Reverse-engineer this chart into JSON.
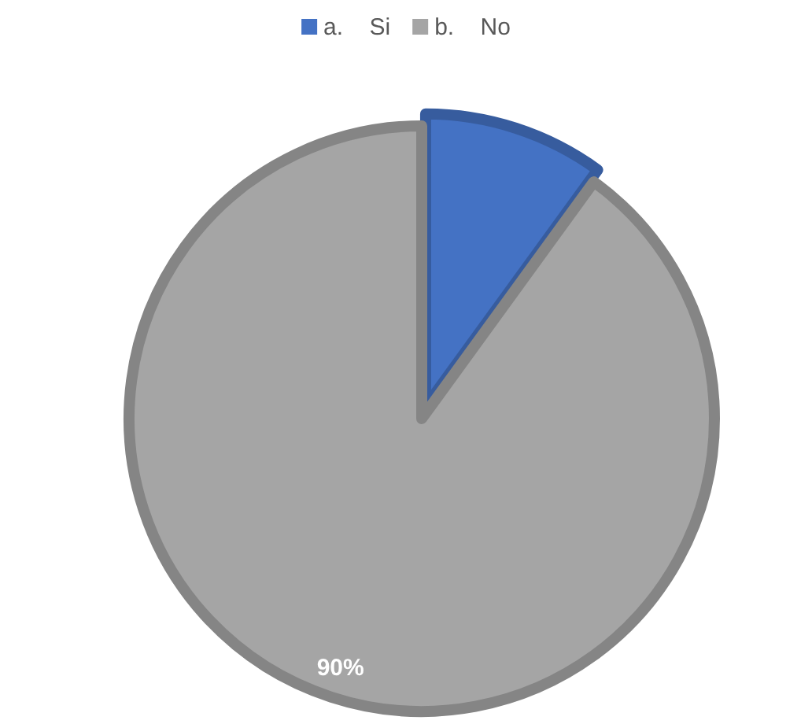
{
  "chart_data": {
    "type": "pie",
    "categories": [
      "a.    Si",
      "b.    No"
    ],
    "values": [
      10,
      90
    ],
    "colors": [
      "#4472c4",
      "#a5a5a5"
    ],
    "value_labels": [
      null,
      "90%"
    ],
    "legend": "top"
  }
}
